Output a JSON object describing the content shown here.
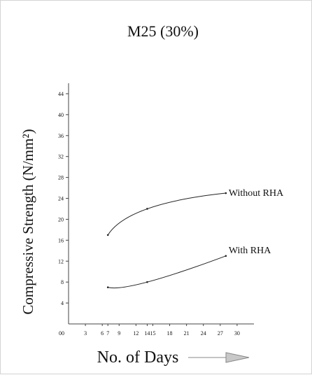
{
  "chart_data": {
    "type": "line",
    "title": "M25 (30%)",
    "xlabel": "No. of Days",
    "ylabel": "Compressive Strength (N/mm²)",
    "xlim": [
      0,
      33
    ],
    "ylim": [
      0,
      46
    ],
    "x_ticks": [
      {
        "value": 0,
        "label": "00"
      },
      {
        "value": 3,
        "label": "3"
      },
      {
        "value": 6,
        "label": "6"
      },
      {
        "value": 7,
        "label": "7"
      },
      {
        "value": 9,
        "label": "9"
      },
      {
        "value": 12,
        "label": "12"
      },
      {
        "value": 14,
        "label": "14"
      },
      {
        "value": 15,
        "label": "15"
      },
      {
        "value": 18,
        "label": "18"
      },
      {
        "value": 21,
        "label": "21"
      },
      {
        "value": 24,
        "label": "24"
      },
      {
        "value": 27,
        "label": "27"
      },
      {
        "value": 30,
        "label": "30"
      }
    ],
    "y_ticks": [
      4,
      8,
      12,
      16,
      20,
      24,
      28,
      32,
      36,
      40,
      44
    ],
    "series": [
      {
        "name": "Without RHA",
        "x": [
          7,
          14,
          28
        ],
        "y": [
          17,
          22,
          25
        ]
      },
      {
        "name": "With RHA",
        "x": [
          7,
          14,
          28
        ],
        "y": [
          7,
          8,
          13
        ]
      }
    ],
    "grid": false,
    "colors": {
      "line": "#222222",
      "arrow_fill": "#c8c8c8",
      "arrow_stroke": "#888888"
    }
  }
}
